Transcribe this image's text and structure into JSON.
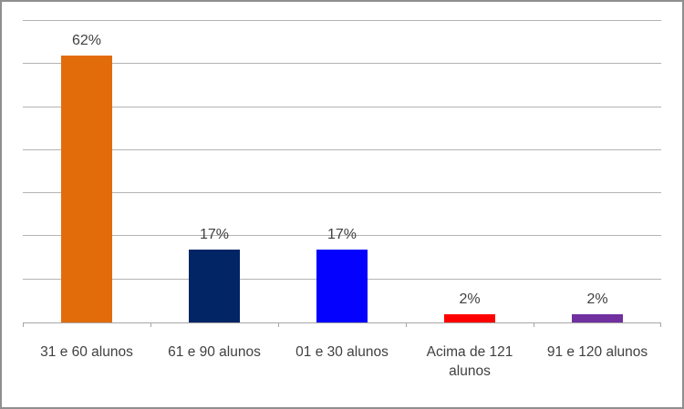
{
  "chart_data": {
    "type": "bar",
    "title": "",
    "xlabel": "",
    "ylabel": "",
    "categories": [
      "31 e 60 alunos",
      "61 e 90 alunos",
      "01 e 30 alunos",
      "Acima de 121 alunos",
      "91 e 120 alunos"
    ],
    "values": [
      62,
      17,
      17,
      2,
      2
    ],
    "value_labels": [
      "62%",
      "17%",
      "17%",
      "2%",
      "2%"
    ],
    "bar_colors": [
      "#e36c0a",
      "#022565",
      "#0402fe",
      "#fe0000",
      "#7030a0"
    ],
    "ylim": [
      0,
      70
    ],
    "grid": true,
    "grid_step": 10,
    "legend": false,
    "axis_tick_labels_y": []
  },
  "style_colors": {
    "label_text": "#404040",
    "gridline": "#b3b3b3",
    "axis_line": "#a6a6a6",
    "frame_border": "#8f8f8f",
    "background": "#ffffff"
  }
}
